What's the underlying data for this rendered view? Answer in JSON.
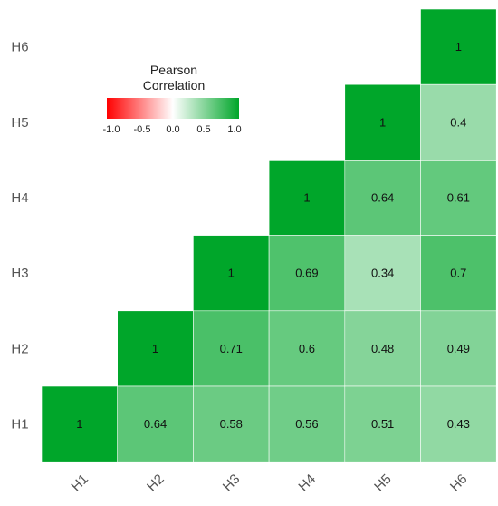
{
  "chart_data": {
    "type": "heatmap",
    "title": "",
    "row_labels": [
      "H6",
      "H5",
      "H4",
      "H3",
      "H2",
      "H1"
    ],
    "col_labels": [
      "H1",
      "H2",
      "H3",
      "H4",
      "H5",
      "H6"
    ],
    "cells": [
      {
        "row": "H6",
        "col": "H6",
        "value": 1,
        "label": "1"
      },
      {
        "row": "H5",
        "col": "H5",
        "value": 1,
        "label": "1"
      },
      {
        "row": "H5",
        "col": "H6",
        "value": 0.4,
        "label": "0.4"
      },
      {
        "row": "H4",
        "col": "H4",
        "value": 1,
        "label": "1"
      },
      {
        "row": "H4",
        "col": "H5",
        "value": 0.64,
        "label": "0.64"
      },
      {
        "row": "H4",
        "col": "H6",
        "value": 0.61,
        "label": "0.61"
      },
      {
        "row": "H3",
        "col": "H3",
        "value": 1,
        "label": "1"
      },
      {
        "row": "H3",
        "col": "H4",
        "value": 0.69,
        "label": "0.69"
      },
      {
        "row": "H3",
        "col": "H5",
        "value": 0.34,
        "label": "0.34"
      },
      {
        "row": "H3",
        "col": "H6",
        "value": 0.7,
        "label": "0.7"
      },
      {
        "row": "H2",
        "col": "H2",
        "value": 1,
        "label": "1"
      },
      {
        "row": "H2",
        "col": "H3",
        "value": 0.71,
        "label": "0.71"
      },
      {
        "row": "H2",
        "col": "H4",
        "value": 0.6,
        "label": "0.6"
      },
      {
        "row": "H2",
        "col": "H5",
        "value": 0.48,
        "label": "0.48"
      },
      {
        "row": "H2",
        "col": "H6",
        "value": 0.49,
        "label": "0.49"
      },
      {
        "row": "H1",
        "col": "H1",
        "value": 1,
        "label": "1"
      },
      {
        "row": "H1",
        "col": "H2",
        "value": 0.64,
        "label": "0.64"
      },
      {
        "row": "H1",
        "col": "H3",
        "value": 0.58,
        "label": "0.58"
      },
      {
        "row": "H1",
        "col": "H4",
        "value": 0.56,
        "label": "0.56"
      },
      {
        "row": "H1",
        "col": "H5",
        "value": 0.51,
        "label": "0.51"
      },
      {
        "row": "H1",
        "col": "H6",
        "value": 0.43,
        "label": "0.43"
      }
    ],
    "legend": {
      "title_lines": [
        "Pearson",
        "Correlation"
      ],
      "ticks": [
        "-1.0",
        "-0.5",
        "0.0",
        "0.5",
        "1.0"
      ],
      "range": [
        -1,
        1
      ],
      "placement": "top-left"
    },
    "colors": {
      "low": "#ff0000",
      "mid": "#ffffff",
      "high": "#00a62a"
    }
  }
}
